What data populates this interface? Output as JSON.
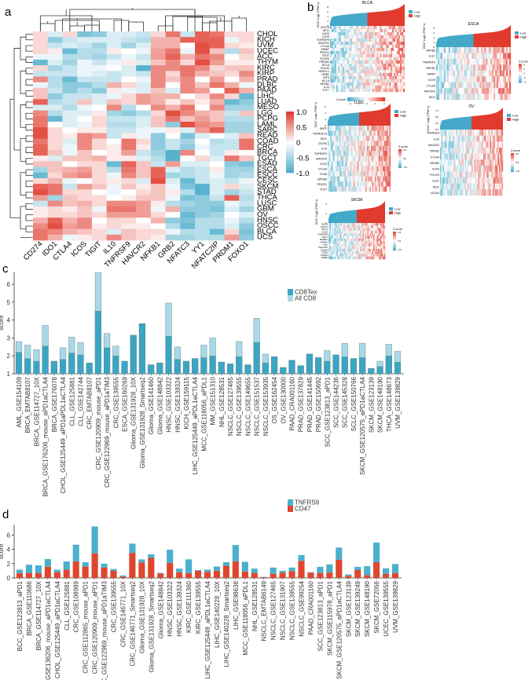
{
  "panel_labels": {
    "a": "a",
    "b": "b",
    "c": "c",
    "d": "d"
  },
  "colors": {
    "low": "#44a9c8",
    "mid": "#ffffff",
    "high": "#e03b2d",
    "cd8tex": "#3aa6c3",
    "allcd8": "#a9d9e7",
    "tnfrs9": "#4bb0cc",
    "cd47": "#e0462f"
  },
  "chart_data": [
    {
      "type": "heatmap",
      "panel": "a",
      "columns": [
        "CD274",
        "IDO1",
        "CTLA4",
        "ICOS",
        "TIGIT",
        "IL10",
        "TNFRSF9",
        "HAVCR2",
        "NFKB1",
        "GRB2",
        "NFATC3",
        "YY1",
        "NFATC2IP",
        "PRDM1",
        "FOXO1"
      ],
      "rows": [
        "CHOL",
        "KICH",
        "UVM",
        "UCEC",
        "ACC",
        "THYM",
        "KIRC",
        "KIRP",
        "PRAD",
        "DLBC",
        "PAAD",
        "LIHC",
        "LUAD",
        "MESO",
        "LGG",
        "PCPG",
        "LAML",
        "SARC",
        "READ",
        "COAD",
        "CRC",
        "BRCA",
        "TGCT",
        "ESAD",
        "ESCA",
        "ESCC",
        "CESC",
        "SKCM",
        "STAD",
        "THCA",
        "LUSC",
        "GBM",
        "OV",
        "HNSC",
        "OSCC",
        "BLCA",
        "UCS"
      ],
      "values": [
        [
          0.2,
          -0.2,
          0.2,
          -0.7,
          -0.6,
          -0.2,
          -0.2,
          -0.3,
          0.2,
          0.7,
          -0.3,
          0.8,
          0.7,
          0.2,
          0.2
        ],
        [
          0.2,
          -0.6,
          -0.3,
          -0.2,
          -0.2,
          -0.2,
          -0.3,
          -0.4,
          0.4,
          0.4,
          0.8,
          0.8,
          0.8,
          -0.1,
          0.2
        ],
        [
          0.2,
          -0.3,
          -0.2,
          -0.3,
          -0.5,
          -0.2,
          -0.5,
          -0.2,
          0.4,
          0.4,
          0.0,
          0.9,
          0.8,
          0.2,
          0.1
        ],
        [
          0.2,
          0.1,
          -0.8,
          -0.4,
          -0.4,
          0.1,
          0.0,
          -0.1,
          0.5,
          0.7,
          -0.1,
          0.9,
          0.3,
          -0.4,
          0.3
        ],
        [
          -0.1,
          -0.1,
          -0.4,
          -0.4,
          -0.5,
          -0.3,
          -0.1,
          -0.3,
          0.5,
          0.8,
          0.4,
          0.7,
          0.6,
          0.0,
          0.2
        ],
        [
          -0.8,
          -0.2,
          -0.5,
          -0.1,
          -0.3,
          -0.1,
          0.1,
          -0.2,
          0.3,
          0.6,
          0.2,
          0.9,
          0.5,
          0.1,
          0.1
        ],
        [
          0.2,
          -0.5,
          -0.3,
          -0.1,
          -0.1,
          0.0,
          -0.2,
          -0.9,
          0.6,
          0.6,
          0.7,
          0.6,
          0.2,
          0.3,
          0.3
        ],
        [
          -0.3,
          -0.3,
          -0.3,
          -0.1,
          -0.2,
          -0.3,
          -0.2,
          -0.3,
          0.6,
          0.2,
          0.7,
          0.4,
          0.3,
          0.2,
          0.6
        ],
        [
          0.6,
          -0.4,
          -0.8,
          -0.3,
          -0.3,
          -0.3,
          0.0,
          -0.1,
          0.6,
          0.3,
          0.6,
          0.0,
          0.5,
          0.0,
          0.4
        ],
        [
          -0.1,
          -0.4,
          -0.6,
          -0.6,
          -0.4,
          0.4,
          0.2,
          -0.2,
          0.6,
          0.0,
          0.6,
          0.3,
          0.7,
          0.4,
          -0.1
        ],
        [
          0.3,
          -0.3,
          -0.6,
          -0.4,
          -0.6,
          0.1,
          -0.1,
          -0.2,
          0.3,
          -0.2,
          0.6,
          0.5,
          0.0,
          0.8,
          0.4
        ],
        [
          0.3,
          -0.6,
          -0.3,
          -0.3,
          -0.2,
          -0.1,
          0.2,
          0.5,
          0.4,
          0.4,
          0.0,
          0.2,
          0.6,
          0.2,
          -0.8
        ],
        [
          0.8,
          -0.4,
          -0.3,
          0.3,
          -0.2,
          0.3,
          0.2,
          0.5,
          0.4,
          0.1,
          0.3,
          0.1,
          0.4,
          -0.8,
          -0.6
        ],
        [
          -0.2,
          -0.2,
          -0.4,
          -0.1,
          0.0,
          0.6,
          -0.4,
          0.0,
          0.6,
          0.4,
          0.7,
          0.0,
          0.6,
          -0.5,
          -0.5
        ],
        [
          0.6,
          -0.4,
          -0.2,
          -0.2,
          0.1,
          -0.5,
          -0.6,
          -0.4,
          0.2,
          0.9,
          0.6,
          0.4,
          0.3,
          -0.3,
          0.3
        ],
        [
          0.7,
          -0.8,
          -0.2,
          0.0,
          0.2,
          -0.3,
          -0.3,
          -0.2,
          0.3,
          0.7,
          0.3,
          0.5,
          0.3,
          -0.4,
          -0.4
        ],
        [
          0.7,
          0.0,
          -0.2,
          -0.1,
          0.2,
          -0.4,
          -0.4,
          -0.2,
          0.3,
          -0.6,
          0.9,
          0.6,
          0.5,
          -0.5,
          -0.5
        ],
        [
          0.9,
          0.2,
          0.0,
          0.1,
          0.1,
          -0.3,
          -0.3,
          -0.1,
          -0.1,
          0.1,
          -0.2,
          0.5,
          0.8,
          -0.5,
          -0.5
        ],
        [
          0.9,
          0.2,
          0.1,
          0.6,
          0.5,
          -0.3,
          0.1,
          -0.1,
          -0.6,
          0.0,
          -0.7,
          -0.2,
          0.0,
          -0.2,
          0.3
        ],
        [
          0.7,
          0.2,
          -0.2,
          0.6,
          0.2,
          0.0,
          0.7,
          0.2,
          -0.6,
          -0.3,
          -0.5,
          0.0,
          -0.4,
          -0.3,
          0.7
        ],
        [
          0.8,
          0.2,
          -0.1,
          0.6,
          0.2,
          0.1,
          0.7,
          0.1,
          -0.6,
          -0.3,
          -0.6,
          -0.1,
          -0.3,
          -0.3,
          0.7
        ],
        [
          0.8,
          0.3,
          -0.1,
          0.3,
          0.0,
          0.1,
          0.5,
          -0.3,
          -0.5,
          -0.9,
          0.6,
          0.0,
          -0.3,
          0.1,
          0.0
        ],
        [
          0.1,
          -0.2,
          0.3,
          0.3,
          0.4,
          0.1,
          0.1,
          -0.2,
          -0.4,
          -0.9,
          0.0,
          0.2,
          -0.2,
          0.7,
          0.3
        ],
        [
          0.3,
          0.3,
          0.0,
          0.2,
          0.2,
          -0.8,
          0.8,
          0.3,
          -0.3,
          0.5,
          -0.2,
          -0.2,
          0.0,
          -0.6,
          -0.7
        ],
        [
          -0.5,
          0.3,
          0.4,
          0.5,
          0.2,
          -0.4,
          0.7,
          0.3,
          0.8,
          -0.2,
          -0.4,
          -0.3,
          0.1,
          -0.5,
          -0.5
        ],
        [
          -0.8,
          0.2,
          0.5,
          0.6,
          0.2,
          -0.1,
          0.6,
          0.3,
          0.8,
          -0.5,
          -0.4,
          -0.3,
          -0.1,
          -0.5,
          -0.4
        ],
        [
          0.2,
          0.4,
          -0.1,
          0.0,
          0.2,
          0.1,
          0.2,
          -0.2,
          0.9,
          -0.2,
          -0.8,
          -0.3,
          -0.2,
          -0.3,
          -0.1
        ],
        [
          0.8,
          0.7,
          -0.3,
          0.5,
          0.3,
          -0.1,
          0.3,
          0.1,
          0.3,
          -0.1,
          -0.7,
          -0.9,
          -0.2,
          0.2,
          -0.2
        ],
        [
          0.9,
          0.7,
          0.2,
          0.2,
          0.0,
          -0.1,
          0.0,
          0.2,
          0.3,
          0.1,
          -0.4,
          -0.9,
          -0.2,
          -0.5,
          -0.3
        ],
        [
          0.5,
          -0.5,
          0.3,
          0.2,
          0.2,
          0.0,
          0.1,
          0.3,
          0.3,
          -0.1,
          -0.7,
          -0.6,
          -0.3,
          0.8,
          -0.4
        ],
        [
          -0.3,
          0.6,
          0.3,
          0.4,
          0.2,
          0.6,
          0.6,
          0.5,
          0.1,
          -0.4,
          -0.5,
          -0.6,
          -0.6,
          -0.1,
          -0.3
        ],
        [
          0.1,
          0.2,
          0.1,
          0.3,
          -0.1,
          0.7,
          0.7,
          0.5,
          -0.1,
          0.4,
          -0.6,
          -0.6,
          -0.7,
          -0.2,
          -0.5
        ],
        [
          0.1,
          0.2,
          0.2,
          0.3,
          0.2,
          0.5,
          0.5,
          0.5,
          0.2,
          0.0,
          -0.8,
          -0.6,
          -0.5,
          0.0,
          -0.2
        ],
        [
          0.4,
          0.8,
          0.4,
          0.6,
          0.0,
          0.2,
          0.2,
          0.0,
          0.4,
          -0.6,
          -0.7,
          -0.4,
          -0.4,
          -0.1,
          -0.4
        ],
        [
          0.6,
          0.9,
          0.5,
          0.6,
          0.1,
          0.2,
          0.1,
          0.1,
          0.0,
          -0.4,
          -0.8,
          -0.4,
          -0.4,
          -0.2,
          -0.6
        ],
        [
          0.7,
          0.6,
          0.4,
          0.3,
          0.2,
          -0.2,
          0.3,
          0.2,
          0.2,
          -0.1,
          -0.4,
          -0.4,
          -0.8,
          0.2,
          -0.7
        ],
        [
          0.7,
          0.4,
          -0.1,
          0.1,
          0.2,
          0.6,
          0.3,
          0.2,
          0.1,
          -0.5,
          -0.5,
          -0.4,
          -0.4,
          0.5,
          -0.6
        ]
      ],
      "range": [
        -1,
        1
      ],
      "legend_ticks": [
        "1.0",
        "0.5",
        "0",
        "-0.5",
        "-1.0"
      ],
      "dendrograms": [
        "rows",
        "columns"
      ]
    },
    {
      "type": "bar",
      "panel": "c",
      "mode": "overlay",
      "ylabel": "score",
      "ylim": [
        1,
        6.7
      ],
      "yticks": [
        "1",
        "2",
        "3",
        "4",
        "5",
        "6"
      ],
      "legend_placement": "top-right",
      "categories": [
        "AML_GSE154109",
        "BRCA_EMTAB8107",
        "BRCA_GSE114727_10X",
        "BRCA_GSE176206_mouse_aPD1aCTLA4",
        "BRCA_GSE176078",
        "CHOL_GSE125449_aPD1aPDL1aCTLA4",
        "CLL_GSE125881",
        "CLL_GSE142744",
        "CRC_EMTAB8107",
        "CRC_GSE120909_mouse_aPD1",
        "CRC_GSE122969_mouse_aPD1aTIM3",
        "CRC_GSE139555",
        "ESCA_GSE160269",
        "Glioma_GSE131928_10X",
        "Glioma_GSE131928_Smartseq2",
        "Glioma_GSE141460",
        "Glioma_GSE148842",
        "HNSC_GSE103322",
        "HNSC_GSE139324",
        "KICH_GSE159115",
        "LIHC_GSE125449_aPDL1aCTLA4",
        "MCC_GSE118056_aPDL1",
        "MM_GSE151310",
        "NHL_GSE128531",
        "NSCLC_GSE127465",
        "NSCLC_GSE139555",
        "NSCLC_GSE149655",
        "NSCLC_GSE151537",
        "NSCLC_GSE153935",
        "OS_GSE162454",
        "OV_GSE130000",
        "PAAD_CRA001160",
        "PRAD_GSE137829",
        "PRAD_GSE141445",
        "PRAD_GSE150692",
        "SCC_GSE123813_aPD1",
        "SCC_GSE144236",
        "SCC_GSE145328",
        "SCLC_GSE150766",
        "SKCM_GSE120575_aPD1aCTLA4",
        "SKCM_GSE123139",
        "SKCM_GSE148190",
        "THCA_GSE148673",
        "UVM_GSE139829"
      ],
      "series": [
        {
          "name": "CD8Tex",
          "values": [
            2.2,
            1.85,
            1.7,
            2.55,
            1.7,
            1.8,
            2.15,
            2.05,
            1.6,
            4.5,
            2.45,
            2.0,
            1.7,
            3.15,
            3.8,
            1.5,
            1.6,
            3.1,
            1.8,
            1.7,
            1.85,
            1.9,
            2.0,
            1.65,
            1.55,
            1.95,
            1.5,
            2.75,
            1.6,
            1.95,
            1.35,
            1.75,
            1.45,
            2.1,
            1.9,
            1.7,
            2.05,
            1.95,
            1.85,
            1.9,
            1.3,
            1.4,
            2.0,
            1.65
          ]
        },
        {
          "name": "All CD8",
          "values": [
            2.8,
            2.6,
            2.35,
            3.7,
            1.7,
            2.45,
            3.05,
            2.75,
            1.6,
            6.65,
            3.25,
            2.55,
            1.7,
            3.15,
            3.8,
            1.5,
            1.6,
            4.95,
            2.5,
            1.7,
            1.85,
            2.6,
            3.0,
            1.65,
            1.55,
            2.8,
            1.5,
            4.1,
            2.1,
            1.95,
            1.35,
            1.75,
            1.45,
            2.1,
            1.9,
            2.3,
            2.05,
            2.7,
            1.85,
            2.7,
            1.3,
            1.7,
            2.65,
            2.25
          ]
        }
      ]
    },
    {
      "type": "bar",
      "panel": "d",
      "mode": "stacked",
      "ylabel": "score",
      "ylim": [
        0,
        7.4
      ],
      "yticks": [
        "0",
        "2",
        "4",
        "6"
      ],
      "legend_placement": "top-right",
      "categories": [
        "BCC_GSE123813_aPD1",
        "BRCA_GSE110686",
        "BRCA_GSE114727_10X",
        "BRCA_GSE136206_mouse_aPD1aCTLA4",
        "CHOL_GSE125449_aPD1aCTLA4",
        "CLL_GSE125881",
        "CRC_GSE108989",
        "CRC_GSE112865_mouse_aPD1",
        "CRC_GSE120909_mouse_aPD1",
        "CRC_GSE122969_mouse_aPD1aTIM3",
        "CRC_GSE139555",
        "CRC_GSE146771_10X",
        "CRC_GSE146771_Smartseq2",
        "Glioma_GSE131928_10X",
        "Glioma_GSE131928_Smartseq2",
        "Glioma_GSE148842",
        "HNSC_GSE103322",
        "HNSC_GSE139324",
        "KIRC_GSE111360",
        "KIRC_GSE139555",
        "LIHC_GSE125449_aPDL1aCTLA4",
        "LIHC_GSE140228_10X",
        "LIHC_GSE140228_Smartseq2",
        "LIHC_GSE98638",
        "MCC_GSE118056_aPDL1",
        "NHL_GSE128531",
        "NSCLC_EMTAB6149",
        "NSCLC_GSE127465",
        "NSCLC_GSE131907",
        "NSCLC_GSE139555",
        "NSCLC_GSE99254",
        "PAAD_CRA001160",
        "SCC_GSE123813_aPD1",
        "SKCM_GSE115978_aPD1",
        "SKCM_GSE120575_aPD1aCTLA4",
        "SKCM_GSE123139",
        "SKCM_GSE139249",
        "SKCM_GSE148190",
        "SKCM_GSE72056",
        "UCEC_GSE139555",
        "UVM_GSE139829"
      ],
      "series": [
        {
          "name": "TNFRS9",
          "values": [
            0.5,
            1.15,
            1.05,
            1.1,
            0.35,
            1.15,
            2.35,
            0.6,
            3.75,
            0.55,
            0.25,
            0.15,
            1.3,
            0.45,
            0.5,
            0.1,
            1.85,
            0.5,
            1.95,
            0.1,
            0.3,
            0.6,
            0.5,
            2.3,
            1.35,
            0.6,
            0.05,
            0.9,
            0.25,
            0.5,
            0.8,
            0.05,
            0.85,
            1.15,
            1.7,
            0.2,
            0.45,
            1.25,
            2.75,
            0.8,
            1.3
          ]
        },
        {
          "name": "CD47",
          "values": [
            0.65,
            0.7,
            0.7,
            1.55,
            0.8,
            1.15,
            2.3,
            1.6,
            3.45,
            1.45,
            1.0,
            0.2,
            3.5,
            2.15,
            2.8,
            0.6,
            2.1,
            0.8,
            0.65,
            1.0,
            0.85,
            1.0,
            1.7,
            2.3,
            0.9,
            0.7,
            0.1,
            0.55,
            0.75,
            0.95,
            2.4,
            0.75,
            0.7,
            0.75,
            2.55,
            0.3,
            1.1,
            0.4,
            2.2,
            0.55,
            0.65
          ]
        }
      ]
    }
  ],
  "panel_b": {
    "y_axis_label": "CD47 Log2 (TPM+1)",
    "group_legend": [
      "Low",
      "High"
    ],
    "zscore_label": "Z-score",
    "subplots": [
      {
        "title": "BLCA",
        "yticks": [
          "0",
          "2",
          "4",
          "6",
          "8"
        ],
        "genes": [
          "CD274",
          "IDO1",
          "LAG3",
          "ICOS",
          "TNFRSF9",
          "HAVCR2",
          "CTLA4",
          "MKI67",
          "PDCD1",
          "TIGIT",
          "FOXP3",
          "PRDM1",
          "BTLA",
          "CD244",
          "NFATC1",
          "GRB2",
          "IRF4",
          "BCL6",
          "NFKB2",
          "IL10",
          "TCF7"
        ],
        "zscale": [
          "-2",
          "-1",
          "0",
          "1",
          "2"
        ]
      },
      {
        "title": "ESCA",
        "yticks": [
          "0",
          "2",
          "4",
          "6",
          "8"
        ],
        "genes": [
          "NFKB2",
          "TCF7",
          "TNFRSF9",
          "NFKB1",
          "MKI67",
          "ICOS",
          "CTLA4",
          "HAVCR2",
          "IDO1"
        ],
        "zscale": [
          "4",
          "2",
          "0",
          "-2",
          "-4"
        ]
      },
      {
        "title": "LUSC",
        "yticks": [
          "0",
          "2",
          "4",
          "6"
        ],
        "genes": [
          "BATF",
          "TNFRSF14",
          "IDO1",
          "CD244",
          "IL10",
          "TNFRSF9",
          "HAVCR2",
          "ICOS",
          "CTLA4",
          "CD48",
          "NFKB2",
          "PDCD1",
          "TCF7"
        ],
        "zscale": [
          "2.5",
          "0.0",
          "-2.5"
        ]
      },
      {
        "title": "OV",
        "yticks": [
          "0.0",
          "2.5",
          "5.0",
          "7.5"
        ],
        "genes": [
          "TNFRSF9",
          "IL10",
          "HAVCR2",
          "NFKB1",
          "CTLA4",
          "NFKB2",
          "ICOS",
          "FOXP3",
          "TIGIT",
          "IDO1",
          "CD244"
        ],
        "zscale": [
          "2.5",
          "0.0",
          "-2.5"
        ]
      },
      {
        "title": "SKCM",
        "yticks": [
          "0",
          "2",
          "4"
        ],
        "genes": [
          "BCL6",
          "CD274",
          "BTLA",
          "ICOS",
          "TNFRSF9",
          "TIGIT",
          "PRDM1",
          "NFKB1",
          "TOX",
          "HAVCR2",
          "CD244",
          "CD96",
          "SATB1",
          "GRB2"
        ],
        "zscale": [
          "2.5",
          "0.0",
          "-2.5"
        ]
      }
    ]
  }
}
